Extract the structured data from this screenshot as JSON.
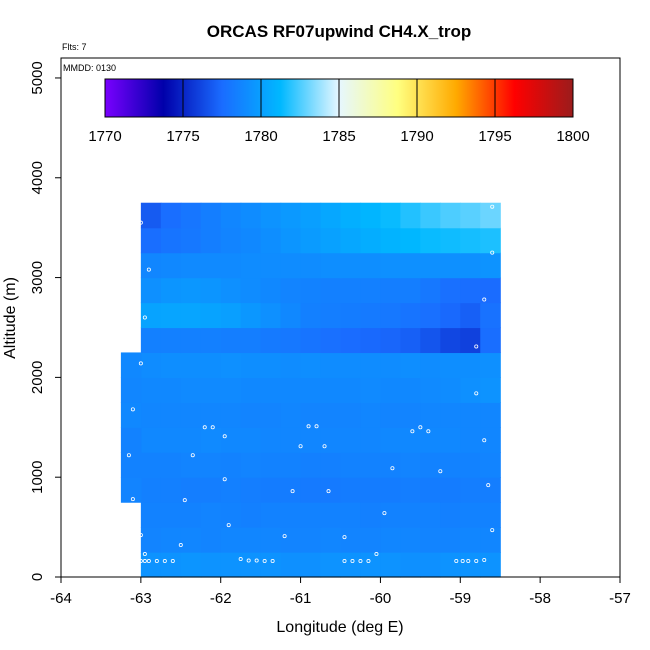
{
  "chart_data": {
    "type": "heatmap",
    "title": "ORCAS RF07upwind CH4.X_trop",
    "xlabel": "Longitude (deg E)",
    "ylabel": "Altitude (m)",
    "xlim": [
      -64,
      -57
    ],
    "ylim": [
      0,
      5200
    ],
    "xticks": [
      -64,
      -63,
      -62,
      -61,
      -60,
      -59,
      -58,
      -57
    ],
    "xtick_labels": [
      "-64",
      "-63",
      "-62",
      "-61",
      "-60",
      "-59",
      "-58",
      "-57"
    ],
    "yticks": [
      0,
      1000,
      2000,
      3000,
      4000,
      5000
    ],
    "ytick_labels": [
      "0",
      "1000",
      "2000",
      "3000",
      "4000",
      "5000"
    ],
    "annotations": {
      "flights": "Flts: 7",
      "date": "MMDD: 0130"
    },
    "colorbar": {
      "min": 1770,
      "max": 1800,
      "ticks": [
        1770,
        1775,
        1780,
        1785,
        1790,
        1795,
        1800
      ],
      "tick_labels": [
        "1770",
        "1775",
        "1780",
        "1785",
        "1790",
        "1795",
        "1800"
      ],
      "colors": [
        "#7a00ff",
        "#0000aa",
        "#1a6cff",
        "#00b8ff",
        "#e6f7ff",
        "#ffff80",
        "#ffaa00",
        "#ff0000",
        "#9b1c1c"
      ]
    },
    "grid": {
      "lon_min": -63,
      "lon_step": 0.25,
      "n_cols": 18,
      "alt_min": 0,
      "alt_step": 250,
      "n_rows": 15,
      "row_values": [
        [
          1779.4,
          1779.4,
          1779.5,
          1779.4,
          1779.4,
          1779.4,
          1779.4,
          1779.3,
          1779.3,
          1779.4,
          1779.4,
          1779.4,
          1779.4,
          1779.3,
          1779.3,
          1779.4,
          1779.4,
          1779.4
        ],
        [
          1778.7,
          1778.8,
          1778.8,
          1778.7,
          1778.8,
          1778.8,
          1778.8,
          1778.7,
          1778.7,
          1778.8,
          1778.7,
          1778.7,
          1778.8,
          1778.8,
          1778.7,
          1778.7,
          1778.8,
          1778.8
        ],
        [
          1778.6,
          1778.6,
          1778.6,
          1778.7,
          1778.6,
          1778.5,
          1778.6,
          1778.6,
          1778.6,
          1778.6,
          1778.6,
          1778.5,
          1778.6,
          1778.6,
          1778.6,
          1778.5,
          1778.6,
          1778.6
        ],
        [
          1778.5,
          1778.5,
          1778.4,
          1778.4,
          1778.5,
          1778.4,
          1778.3,
          1778.3,
          1778.2,
          1778.2,
          1778.3,
          1778.3,
          1778.3,
          1778.4,
          1778.3,
          1778.3,
          1778.4,
          1778.4
        ],
        [
          1778.6,
          1778.6,
          1778.7,
          1778.7,
          1778.6,
          1778.7,
          1778.6,
          1778.6,
          1778.5,
          1778.5,
          1778.6,
          1778.6,
          1778.6,
          1778.7,
          1778.6,
          1778.6,
          1778.6,
          1778.7
        ],
        [
          1778.9,
          1778.9,
          1778.9,
          1779.0,
          1778.9,
          1778.9,
          1778.8,
          1778.8,
          1778.8,
          1778.8,
          1778.8,
          1778.8,
          1778.9,
          1778.9,
          1778.9,
          1778.9,
          1778.8,
          1778.8
        ],
        [
          1778.8,
          1778.8,
          1778.8,
          1778.8,
          1778.8,
          1778.7,
          1778.7,
          1778.8,
          1778.7,
          1778.7,
          1778.7,
          1778.8,
          1778.7,
          1778.7,
          1778.8,
          1778.8,
          1778.8,
          1778.8
        ],
        [
          1778.9,
          1778.9,
          1779.0,
          1779.0,
          1779.0,
          1778.9,
          1778.9,
          1778.9,
          1778.9,
          1778.9,
          1778.9,
          1779.0,
          1778.9,
          1778.9,
          1779.0,
          1779.1,
          1779.3,
          1779.4
        ],
        [
          1779.1,
          1779.2,
          1779.2,
          1779.2,
          1779.3,
          1779.2,
          1779.2,
          1779.1,
          1779.2,
          1779.1,
          1779.1,
          1779.1,
          1779.1,
          1779.2,
          1779.1,
          1779.2,
          1779.2,
          1779.3
        ],
        [
          1778.5,
          1778.5,
          1778.5,
          1778.5,
          1778.4,
          1778.4,
          1778.2,
          1778.1,
          1777.9,
          1777.7,
          1777.5,
          1777.4,
          1777.3,
          1777.1,
          1776.7,
          1776.2,
          1776.0,
          1777.6
        ],
        [
          1780.2,
          1780.3,
          1780.3,
          1780.2,
          1780.0,
          1779.6,
          1779.3,
          1778.9,
          1778.5,
          1778.4,
          1778.3,
          1778.2,
          1778.1,
          1777.9,
          1777.7,
          1777.4,
          1777.1,
          1777.8
        ],
        [
          1779.3,
          1779.5,
          1779.6,
          1779.5,
          1779.3,
          1779.1,
          1778.9,
          1778.7,
          1778.6,
          1778.5,
          1778.5,
          1778.5,
          1778.4,
          1778.4,
          1778.1,
          1777.7,
          1777.6,
          1777.5
        ],
        [
          1778.8,
          1778.9,
          1779.0,
          1779.0,
          1779.0,
          1779.1,
          1779.1,
          1779.1,
          1779.1,
          1779.2,
          1779.2,
          1779.2,
          1779.3,
          1779.3,
          1779.3,
          1779.3,
          1779.3,
          1779.4
        ],
        [
          1777.6,
          1777.9,
          1778.1,
          1778.4,
          1778.7,
          1778.9,
          1779.2,
          1779.5,
          1779.8,
          1780.1,
          1780.4,
          1780.7,
          1781.0,
          1781.2,
          1781.4,
          1781.5,
          1781.6,
          1781.7
        ],
        [
          1776.9,
          1777.6,
          1778.0,
          1778.4,
          1778.8,
          1779.1,
          1779.4,
          1779.7,
          1780.0,
          1780.4,
          1780.8,
          1781.1,
          1781.4,
          1781.8,
          1782.2,
          1782.5,
          1782.7,
          1783.0
        ]
      ],
      "extra_block": {
        "lon_min": -63.25,
        "lon_max": -63,
        "values": [
          null,
          null,
          null,
          1778.7,
          1778.6,
          1778.6,
          1778.9,
          1778.8,
          1778.9
        ]
      }
    },
    "flight_points": [
      [
        -63.0,
        160
      ],
      [
        -62.95,
        160
      ],
      [
        -62.9,
        160
      ],
      [
        -62.8,
        160
      ],
      [
        -62.7,
        160
      ],
      [
        -62.6,
        160
      ],
      [
        -62.95,
        230
      ],
      [
        -62.5,
        320
      ],
      [
        -61.75,
        180
      ],
      [
        -61.65,
        165
      ],
      [
        -61.55,
        165
      ],
      [
        -61.45,
        160
      ],
      [
        -61.35,
        160
      ],
      [
        -61.2,
        410
      ],
      [
        -60.45,
        160
      ],
      [
        -60.35,
        160
      ],
      [
        -60.25,
        160
      ],
      [
        -60.15,
        160
      ],
      [
        -60.05,
        230
      ],
      [
        -59.95,
        640
      ],
      [
        -59.05,
        160
      ],
      [
        -58.97,
        160
      ],
      [
        -58.9,
        160
      ],
      [
        -58.8,
        160
      ],
      [
        -58.7,
        170
      ],
      [
        -58.6,
        470
      ],
      [
        -63.0,
        420
      ],
      [
        -62.45,
        770
      ],
      [
        -61.9,
        520
      ],
      [
        -61.95,
        980
      ],
      [
        -61.1,
        860
      ],
      [
        -60.65,
        860
      ],
      [
        -60.45,
        400
      ],
      [
        -63.15,
        1220
      ],
      [
        -63.1,
        780
      ],
      [
        -63.1,
        1680
      ],
      [
        -62.35,
        1220
      ],
      [
        -62.2,
        1500
      ],
      [
        -62.1,
        1500
      ],
      [
        -61.95,
        1410
      ],
      [
        -61.0,
        1310
      ],
      [
        -60.9,
        1510
      ],
      [
        -60.8,
        1510
      ],
      [
        -60.7,
        1310
      ],
      [
        -59.85,
        1090
      ],
      [
        -59.6,
        1460
      ],
      [
        -59.5,
        1500
      ],
      [
        -59.4,
        1460
      ],
      [
        -59.25,
        1060
      ],
      [
        -58.7,
        1370
      ],
      [
        -58.65,
        920
      ],
      [
        -58.8,
        1840
      ],
      [
        -58.8,
        2310
      ],
      [
        -58.7,
        2780
      ],
      [
        -58.6,
        3250
      ],
      [
        -58.6,
        3710
      ],
      [
        -63.0,
        2140
      ],
      [
        -62.95,
        2600
      ],
      [
        -62.9,
        3080
      ],
      [
        -63.0,
        3550
      ]
    ]
  }
}
